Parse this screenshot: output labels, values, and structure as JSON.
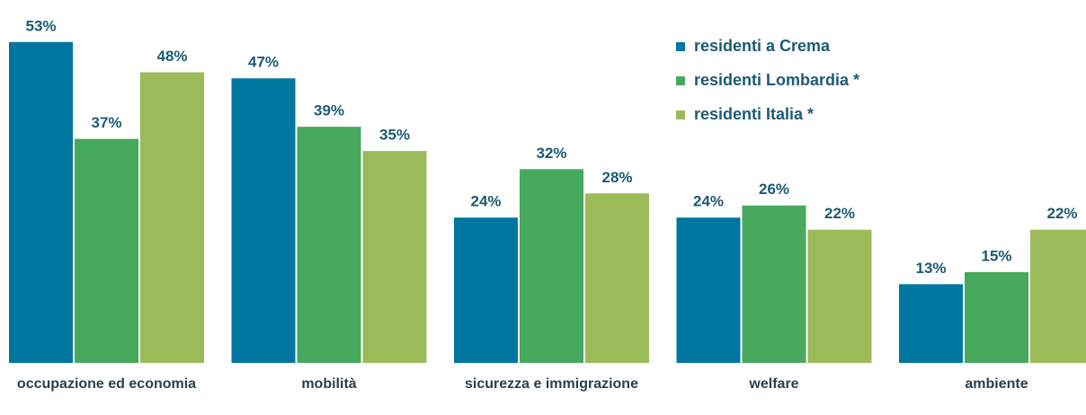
{
  "chart_data": {
    "type": "bar",
    "categories": [
      "occupazione ed economia",
      "mobilità",
      "sicurezza e immigrazione",
      "welfare",
      "ambiente"
    ],
    "series": [
      {
        "name": "residenti a Crema",
        "color": "#0077a0",
        "values": [
          53,
          47,
          24,
          24,
          13
        ],
        "value_labels": [
          "53%",
          "47%",
          "24%",
          "24%",
          "13%"
        ]
      },
      {
        "name": "residenti Lombardia *",
        "color": "#46a95e",
        "values": [
          37,
          39,
          32,
          26,
          15
        ],
        "value_labels": [
          "37%",
          "39%",
          "32%",
          "26%",
          "15%"
        ]
      },
      {
        "name": "residenti Italia *",
        "color": "#9bbb59",
        "values": [
          48,
          35,
          28,
          22,
          22
        ],
        "value_labels": [
          "48%",
          "35%",
          "28%",
          "22%",
          "22%"
        ]
      }
    ],
    "legend": "top-right"
  }
}
